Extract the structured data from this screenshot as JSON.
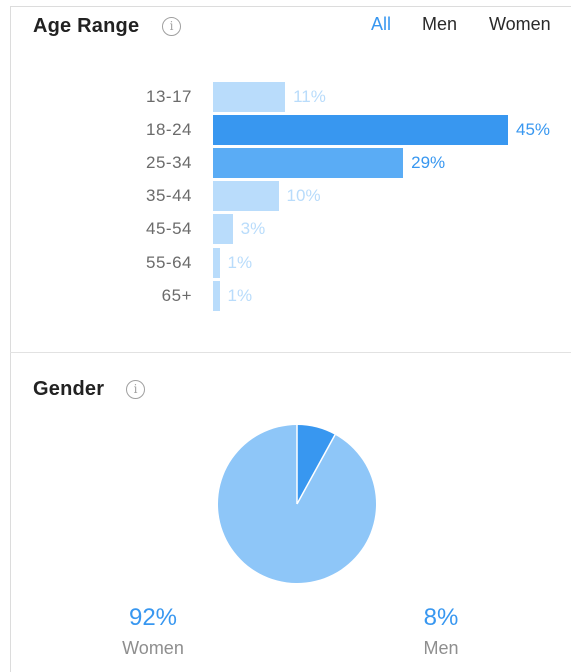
{
  "age_section": {
    "title": "Age Range",
    "info_icon": "info-circle-icon",
    "tabs": [
      {
        "label": "All",
        "active": true
      },
      {
        "label": "Men",
        "active": false
      },
      {
        "label": "Women",
        "active": false
      }
    ]
  },
  "gender_section": {
    "title": "Gender",
    "info_icon": "info-circle-icon",
    "women": {
      "value": "92%",
      "label": "Women"
    },
    "men": {
      "value": "8%",
      "label": "Men"
    }
  },
  "colors": {
    "accent": "#3897f0",
    "bar_max": "#3897f0",
    "bar_mid": "#5aacf5",
    "bar_light": "#b9dcfb",
    "pct_light": "#b9dcfb",
    "pie_women": "#8ec6f8",
    "pie_men": "#3897f0"
  },
  "chart_data": [
    {
      "type": "bar",
      "title": "Age Range",
      "orientation": "horizontal",
      "categories": [
        "13-17",
        "18-24",
        "25-34",
        "35-44",
        "45-54",
        "55-64",
        "65+"
      ],
      "values": [
        11,
        45,
        29,
        10,
        3,
        1,
        1
      ],
      "value_labels": [
        "11%",
        "45%",
        "29%",
        "10%",
        "3%",
        "1%",
        "1%"
      ],
      "unit": "%"
    },
    {
      "type": "pie",
      "title": "Gender",
      "categories": [
        "Women",
        "Men"
      ],
      "values": [
        92,
        8
      ],
      "value_labels": [
        "92%",
        "8%"
      ]
    }
  ]
}
